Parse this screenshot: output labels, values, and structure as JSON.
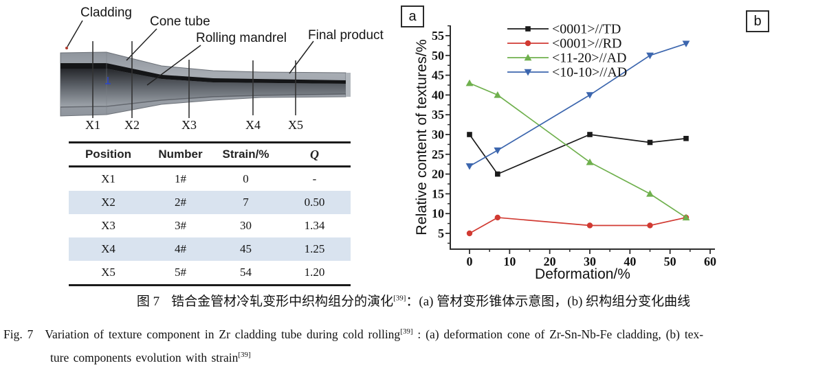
{
  "figure": {
    "panel_a_tag": "a",
    "panel_b_tag": "b"
  },
  "diagram": {
    "labels": {
      "cladding": "Cladding",
      "cone_tube": "Cone tube",
      "rolling_mandrel": "Rolling mandrel",
      "final_product": "Final product"
    },
    "position_markers": [
      "X1",
      "X2",
      "X3",
      "X4",
      "X5"
    ]
  },
  "table": {
    "headers": [
      "Position",
      "Number",
      "Strain/%",
      "Q"
    ],
    "rows": [
      [
        "X1",
        "1#",
        "0",
        "-"
      ],
      [
        "X2",
        "2#",
        "7",
        "0.50"
      ],
      [
        "X3",
        "3#",
        "30",
        "1.34"
      ],
      [
        "X4",
        "4#",
        "45",
        "1.25"
      ],
      [
        "X5",
        "5#",
        "54",
        "1.20"
      ]
    ],
    "shaded_row_color": "#d9e3ef"
  },
  "chart_data": {
    "type": "line",
    "title": "",
    "xlabel": "Deformation/%",
    "ylabel": "Relative content of textures/%",
    "xlim": [
      -5,
      61
    ],
    "ylim": [
      1,
      57.5
    ],
    "xticks": [
      0,
      10,
      20,
      30,
      40,
      50,
      60
    ],
    "yticks": [
      5,
      10,
      15,
      20,
      25,
      30,
      35,
      40,
      45,
      50,
      55
    ],
    "grid": false,
    "legend_position": "top-inside",
    "x": [
      0,
      7,
      30,
      45,
      54
    ],
    "series": [
      {
        "name": "<0001>//TD",
        "color": "#1a1a1a",
        "marker": "square",
        "values": [
          30,
          20,
          30,
          28,
          29
        ]
      },
      {
        "name": "<0001>//RD",
        "color": "#d13a32",
        "marker": "circle",
        "values": [
          5,
          9,
          7,
          7,
          9
        ]
      },
      {
        "name": "<11-20>//AD",
        "color": "#6fb04d",
        "marker": "triangle-up",
        "values": [
          43,
          40,
          23,
          15,
          9
        ]
      },
      {
        "name": "<10-10>//AD",
        "color": "#3c66ae",
        "marker": "triangle-down",
        "values": [
          22,
          26,
          40,
          50,
          53
        ]
      }
    ]
  },
  "caption": {
    "zh_prefix": "图 7",
    "zh_main": "锆合金管材冷轧变形中织构组分的演化",
    "zh_sup": "[39]",
    "zh_rest": "：(a) 管材变形锥体示意图，(b) 织构组分变化曲线",
    "en_prefix": "Fig. 7",
    "en_line1_main": "Variation of texture component in Zr cladding tube during cold rolling",
    "en_sup1": "[39]",
    "en_line1_rest": " : (a) deformation cone of Zr-Sn-Nb-Fe cladding, (b) tex-",
    "en_line2_main": "ture components evolution with strain",
    "en_sup2": "[39]"
  }
}
